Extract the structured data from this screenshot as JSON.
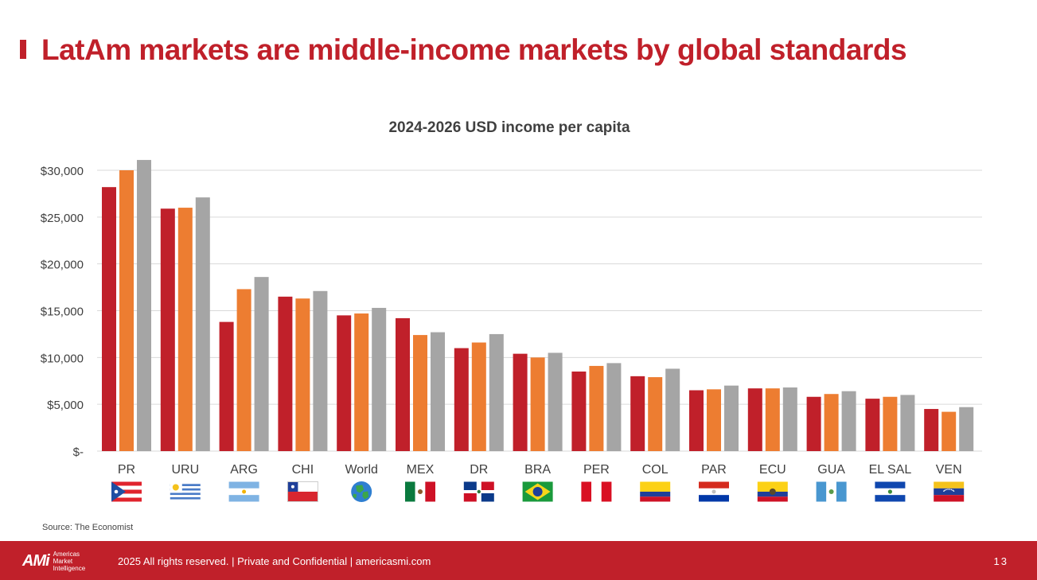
{
  "slide": {
    "title": "LatAm markets are middle-income markets by global standards",
    "source": "Source: The Economist"
  },
  "footer": {
    "logo_mark": "AMi",
    "logo_line1": "Americas",
    "logo_line2": "Market",
    "logo_line3": "Intelligence",
    "text": "2025 All rights reserved. | Private and Confidential | americasmi.com",
    "page_number": "13"
  },
  "colors": {
    "brand_red": "#c0202a",
    "series_2024": "#c0202a",
    "series_2025": "#ed7d31",
    "series_2026": "#a5a5a5",
    "grid": "#d9d9d9",
    "axis_text": "#404040"
  },
  "chart_data": {
    "type": "bar",
    "title": "2024-2026 USD income per capita",
    "xlabel": "",
    "ylabel": "",
    "ylim": [
      0,
      30000
    ],
    "y_ticks": [
      0,
      5000,
      10000,
      15000,
      20000,
      25000,
      30000
    ],
    "y_tick_labels": [
      "$-",
      "$5,000",
      "$10,000",
      "$15,000",
      "$20,000",
      "$25,000",
      "$30,000"
    ],
    "grid": true,
    "legend": "none",
    "categories": [
      "PR",
      "URU",
      "ARG",
      "CHI",
      "World",
      "MEX",
      "DR",
      "BRA",
      "PER",
      "COL",
      "PAR",
      "ECU",
      "GUA",
      "EL SAL",
      "VEN"
    ],
    "flags": [
      "puerto-rico-flag",
      "uruguay-flag",
      "argentina-flag",
      "chile-flag",
      "globe-icon",
      "mexico-flag",
      "dominican-republic-flag",
      "brazil-flag",
      "peru-flag",
      "colombia-flag",
      "paraguay-flag",
      "ecuador-flag",
      "guatemala-flag",
      "el-salvador-flag",
      "venezuela-flag"
    ],
    "series": [
      {
        "name": "2024",
        "values": [
          28200,
          25900,
          13800,
          16500,
          14500,
          14200,
          11000,
          10400,
          8500,
          8000,
          6500,
          6700,
          5800,
          5600,
          4500
        ]
      },
      {
        "name": "2025",
        "values": [
          30000,
          26000,
          17300,
          16300,
          14700,
          12400,
          11600,
          10000,
          9100,
          7900,
          6600,
          6700,
          6100,
          5800,
          4200
        ]
      },
      {
        "name": "2026",
        "values": [
          31100,
          27100,
          18600,
          17100,
          15300,
          12700,
          12500,
          10500,
          9400,
          8800,
          7000,
          6800,
          6400,
          6000,
          4700
        ]
      }
    ]
  }
}
